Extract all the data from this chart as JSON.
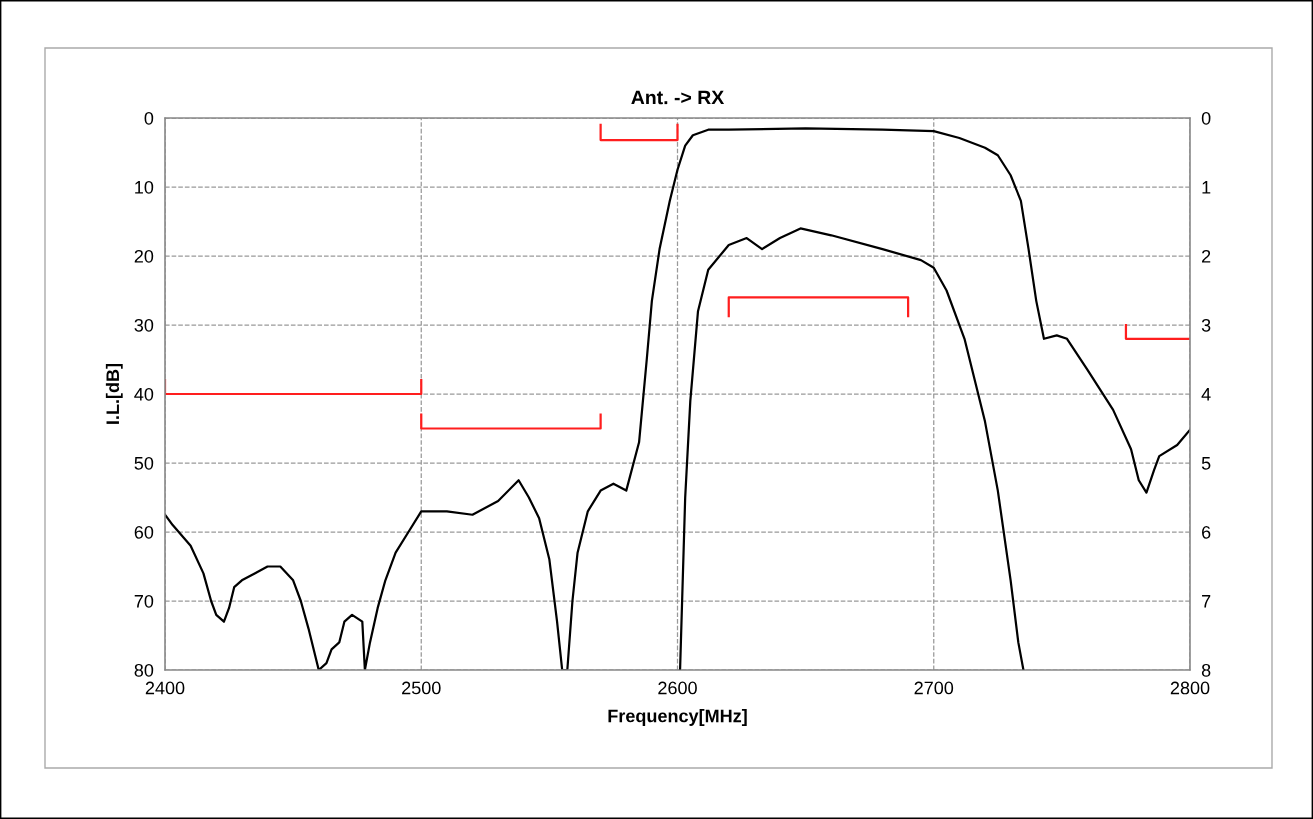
{
  "chart_data": {
    "type": "line",
    "title": "Ant. -> RX",
    "xlabel": "Frequency[MHz]",
    "ylabel": "I.L.[dB]",
    "xlim": [
      2400,
      2800
    ],
    "xticks": [
      2400,
      2500,
      2600,
      2700,
      2800
    ],
    "ylim": [
      80,
      0
    ],
    "yticks": [
      0,
      10,
      20,
      30,
      40,
      50,
      60,
      70,
      80
    ],
    "y2lim": [
      8,
      0
    ],
    "y2ticks": [
      0,
      1,
      2,
      3,
      4,
      5,
      6,
      7,
      8
    ],
    "grid": true,
    "line_style": "solid",
    "marker": "none",
    "series": [
      {
        "color": "#000000",
        "x": [
          2400,
          2403,
          2410,
          2415,
          2418,
          2420,
          2423,
          2425,
          2427,
          2430,
          2435,
          2440,
          2445,
          2450,
          2453,
          2456,
          2458,
          2460,
          2463,
          2465,
          2468,
          2470,
          2473,
          2477,
          2478,
          2480,
          2483,
          2486,
          2490,
          2495,
          2500,
          2510,
          2520,
          2530,
          2538,
          2542,
          2546,
          2550,
          2553,
          2555,
          2557,
          2559,
          2561,
          2565,
          2570,
          2575,
          2580,
          2585,
          2588,
          2590,
          2593,
          2597,
          2600,
          2603,
          2606,
          2612,
          2620,
          2650,
          2680,
          2700,
          2710,
          2720,
          2725,
          2730,
          2734,
          2737,
          2740,
          2743,
          2748,
          2752,
          2760,
          2770,
          2777,
          2780,
          2783,
          2786,
          2788,
          2795,
          2800
        ],
        "values": [
          57.5,
          59,
          62,
          66,
          70,
          72,
          73,
          71,
          68,
          67,
          66,
          65,
          65,
          67,
          70,
          74,
          77,
          80,
          79,
          77,
          76,
          73,
          72,
          73,
          80,
          76,
          71,
          67,
          63,
          60,
          57,
          57,
          57.5,
          55.5,
          52.5,
          55,
          58,
          64,
          73,
          80,
          80,
          70,
          63,
          57,
          54,
          53,
          54,
          47,
          35,
          26.5,
          19,
          12,
          7.5,
          4,
          2.5,
          1.7,
          1.7,
          1.5,
          1.7,
          1.9,
          2.9,
          4.3,
          5.4,
          8.3,
          12,
          19,
          26.5,
          32,
          31.5,
          32,
          36.5,
          42.3,
          48,
          52.5,
          54.3,
          51,
          49,
          47.4,
          45.2
        ]
      },
      {
        "color": "#000000",
        "axis": "y2",
        "x": [
          2601,
          2603,
          2605,
          2608,
          2612,
          2620,
          2627,
          2633,
          2640,
          2648,
          2660,
          2680,
          2695,
          2700,
          2705,
          2712,
          2720,
          2725,
          2730,
          2733,
          2735
        ],
        "values": [
          8,
          5.5,
          4.1,
          2.8,
          2.2,
          1.84,
          1.74,
          1.9,
          1.74,
          1.6,
          1.7,
          1.9,
          2.06,
          2.17,
          2.5,
          3.2,
          4.4,
          5.4,
          6.7,
          7.6,
          8
        ]
      },
      {
        "color": "#ff1e1e",
        "x": [
          2400,
          2400,
          2500,
          2500
        ],
        "values": [
          38,
          40,
          40,
          38
        ]
      },
      {
        "color": "#ff1e1e",
        "x": [
          2500,
          2500,
          2570,
          2570
        ],
        "values": [
          43,
          45,
          45,
          43
        ]
      },
      {
        "color": "#ff1e1e",
        "x": [
          2570,
          2570,
          2600,
          2600
        ],
        "values": [
          1,
          3.2,
          3.2,
          1
        ]
      },
      {
        "color": "#ff1e1e",
        "x": [
          2620,
          2620,
          2690,
          2690
        ],
        "values": [
          28.7,
          26,
          26,
          28.7
        ]
      },
      {
        "color": "#ff1e1e",
        "x": [
          2775,
          2775,
          2800
        ],
        "values": [
          30,
          32,
          32
        ]
      }
    ]
  }
}
